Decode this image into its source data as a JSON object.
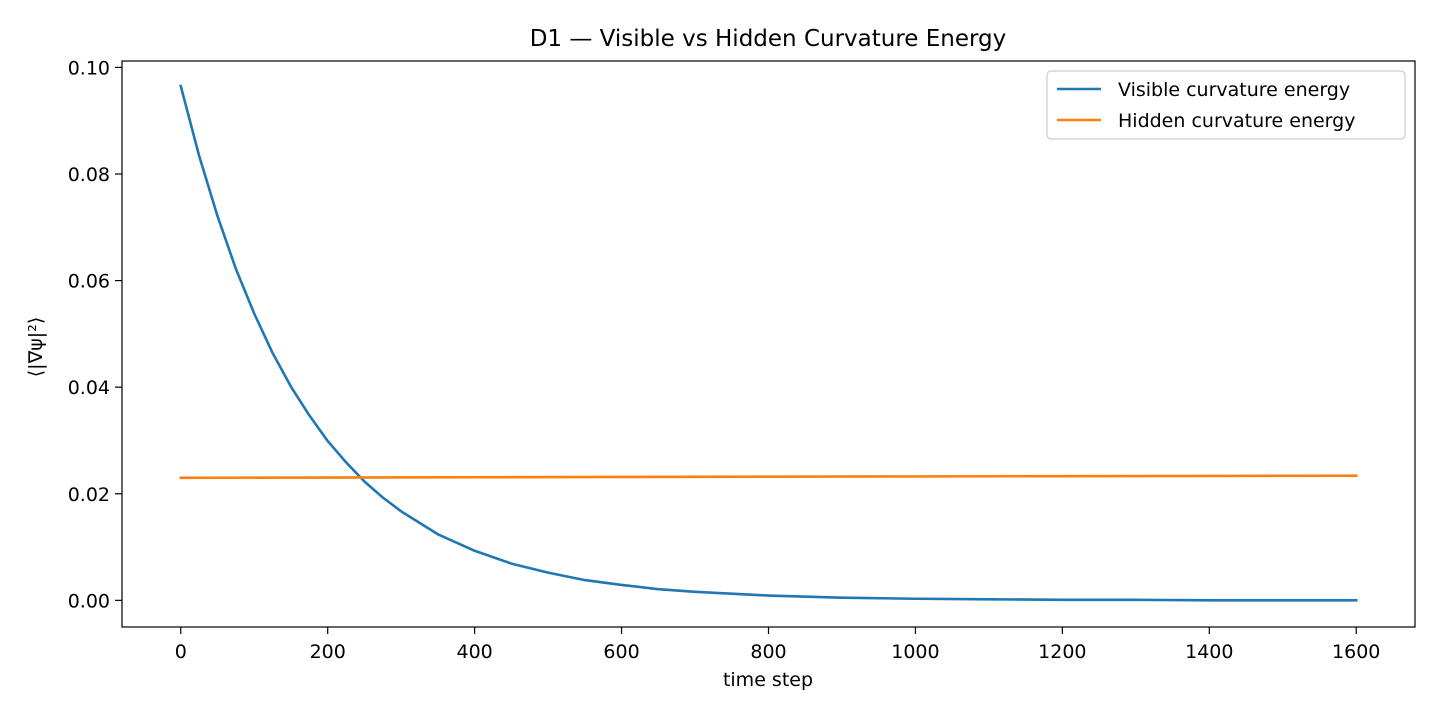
{
  "chart_data": {
    "type": "line",
    "title": "D1 — Visible vs Hidden Curvature Energy",
    "xlabel": "time step",
    "ylabel": "⟨|∇ψ|²⟩",
    "xlim": [
      -80,
      1680
    ],
    "ylim": [
      -0.005,
      0.1012
    ],
    "xticks": [
      0,
      200,
      400,
      600,
      800,
      1000,
      1200,
      1400,
      1600
    ],
    "xtick_labels": [
      "0",
      "200",
      "400",
      "600",
      "800",
      "1000",
      "1200",
      "1400",
      "1600"
    ],
    "yticks": [
      0.0,
      0.02,
      0.04,
      0.06,
      0.08,
      0.1
    ],
    "ytick_labels": [
      "0.00",
      "0.02",
      "0.04",
      "0.06",
      "0.08",
      "0.10"
    ],
    "grid": false,
    "legend_position": "upper right",
    "series": [
      {
        "name": "Visible curvature energy",
        "color": "#1f77b4",
        "x": [
          0,
          25,
          50,
          75,
          100,
          125,
          150,
          175,
          200,
          225,
          250,
          275,
          300,
          350,
          400,
          450,
          500,
          550,
          600,
          650,
          700,
          800,
          900,
          1000,
          1100,
          1200,
          1300,
          1400,
          1500,
          1600
        ],
        "y": [
          0.0965,
          0.0834,
          0.0721,
          0.0622,
          0.0538,
          0.0464,
          0.0401,
          0.0347,
          0.0299,
          0.0259,
          0.0223,
          0.0193,
          0.0167,
          0.0124,
          0.0093,
          0.0069,
          0.0052,
          0.0038,
          0.0029,
          0.0021,
          0.0016,
          0.0009,
          0.0005,
          0.0003,
          0.0002,
          0.0001,
          0.0001,
          0.0,
          0.0,
          0.0
        ]
      },
      {
        "name": "Hidden curvature energy",
        "color": "#ff7f0e",
        "x": [
          0,
          400,
          800,
          1200,
          1600
        ],
        "y": [
          0.023,
          0.0231,
          0.0232,
          0.0233,
          0.0234
        ]
      }
    ]
  }
}
